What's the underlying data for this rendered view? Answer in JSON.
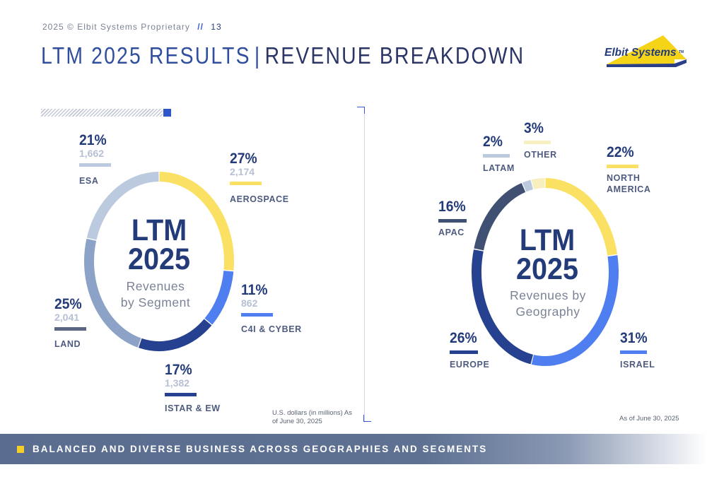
{
  "header": {
    "year": "2025",
    "copyright_text": "© Elbit Systems Proprietary",
    "slash": "//",
    "page_number": "13",
    "title_part1": "LTM 2025 RESULTS",
    "title_separator": "|",
    "title_part2": "REVENUE BREAKDOWN",
    "logo_text": "Elbit Systems",
    "logo_tm": "TM"
  },
  "chart_data": [
    {
      "type": "pie",
      "variant": "donut",
      "center_title_line1": "LTM",
      "center_title_line2": "2025",
      "center_subtitle_line1": "Revenues",
      "center_subtitle_line2": "by Segment",
      "units_note": "U.S. dollars (in millions) As of June 30, 2025",
      "slices": [
        {
          "name": "AEROSPACE",
          "percent": 27,
          "percent_label": "27%",
          "value": 2174,
          "value_label": "2,174",
          "color": "#fbe163"
        },
        {
          "name": "C4I & CYBER",
          "percent": 11,
          "percent_label": "11%",
          "value": 862,
          "value_label": "862",
          "color": "#4f7ef0"
        },
        {
          "name": "ISTAR & EW",
          "percent": 17,
          "percent_label": "17%",
          "value": 1382,
          "value_label": "1,382",
          "color": "#25418f"
        },
        {
          "name": "LAND",
          "percent": 25,
          "percent_label": "25%",
          "value": 2041,
          "value_label": "2,041",
          "color": "#8ca2c6"
        },
        {
          "name": "ESA",
          "percent": 21,
          "percent_label": "21%",
          "value": 1662,
          "value_label": "1,662",
          "color": "#bccadf"
        }
      ]
    },
    {
      "type": "pie",
      "variant": "donut",
      "center_title_line1": "LTM",
      "center_title_line2": "2025",
      "center_subtitle_line1": "Revenues by",
      "center_subtitle_line2": "Geography",
      "units_note": "As of June 30, 2025",
      "slices": [
        {
          "name": "NORTH AMERICA",
          "name_line1": "NORTH",
          "name_line2": "AMERICA",
          "percent": 22,
          "percent_label": "22%",
          "color": "#fbe163"
        },
        {
          "name": "ISRAEL",
          "percent": 31,
          "percent_label": "31%",
          "color": "#4f7ef0"
        },
        {
          "name": "EUROPE",
          "percent": 26,
          "percent_label": "26%",
          "color": "#25418f"
        },
        {
          "name": "APAC",
          "percent": 16,
          "percent_label": "16%",
          "color": "#3f5073"
        },
        {
          "name": "LATAM",
          "percent": 2,
          "percent_label": "2%",
          "color": "#bccadf"
        },
        {
          "name": "OTHER",
          "percent": 3,
          "percent_label": "3%",
          "color": "#f7efbf"
        }
      ]
    }
  ],
  "footer": {
    "banner_text": "BALANCED AND DIVERSE BUSINESS ACROSS GEOGRAPHIES AND SEGMENTS",
    "accent_color": "#f4cf2a"
  }
}
